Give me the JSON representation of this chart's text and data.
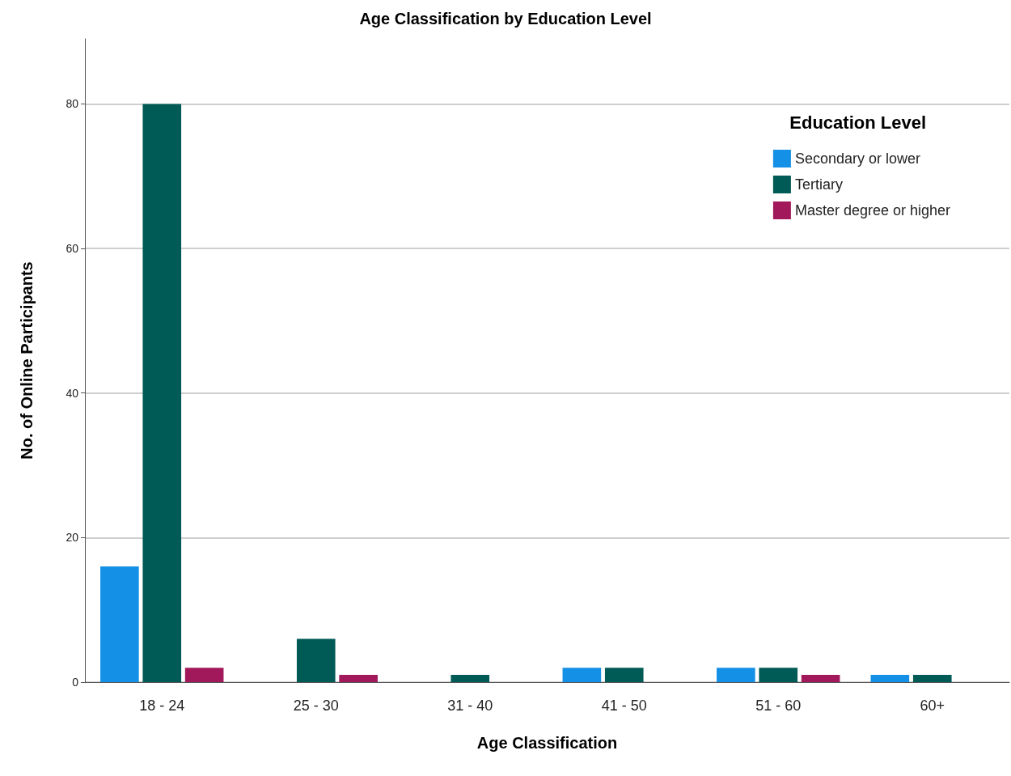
{
  "chart_data": {
    "type": "bar",
    "title": "Age Classification by Education Level",
    "xlabel": "Age Classification",
    "ylabel": "No. of Online Participants",
    "legend_title": "Education Level",
    "categories": [
      "18 - 24",
      "25 - 30",
      "31 - 40",
      "41 - 50",
      "51 - 60",
      "60+"
    ],
    "series": [
      {
        "name": "Secondary or lower",
        "color": "#1490e6",
        "values": [
          16,
          null,
          null,
          2,
          2,
          1
        ]
      },
      {
        "name": "Tertiary",
        "color": "#005a55",
        "values": [
          80,
          6,
          1,
          2,
          2,
          1
        ]
      },
      {
        "name": "Master degree or higher",
        "color": "#a2195b",
        "values": [
          2,
          1,
          null,
          null,
          1,
          null
        ]
      }
    ],
    "ylim": [
      0,
      89
    ],
    "yticks": [
      0,
      20,
      40,
      60,
      80
    ],
    "grid": "y",
    "legend": "top right"
  }
}
